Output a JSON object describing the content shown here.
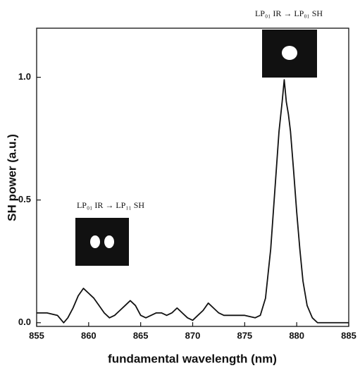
{
  "chart_data": {
    "type": "line",
    "xlabel": "fundamental wavelength (nm)",
    "ylabel": "SH power (a.u.)",
    "annotations": [
      "LP₀₁ IR → LP₀₁ SH",
      "LP₀₁ IR → LP₁₁ SH"
    ],
    "x": [
      855,
      856,
      857,
      857.6,
      858,
      858.5,
      859,
      859.5,
      860,
      860.5,
      861,
      861.5,
      862,
      862.5,
      863,
      863.5,
      864,
      864.5,
      865,
      865.5,
      866,
      866.5,
      867,
      867.5,
      868,
      868.5,
      869,
      869.5,
      870,
      870.5,
      871,
      871.5,
      872,
      872.5,
      873,
      874,
      875,
      876,
      876.5,
      877,
      877.5,
      878,
      878.3,
      878.6,
      878.8,
      879,
      879.2,
      879.4,
      879.7,
      880,
      880.3,
      880.6,
      881,
      881.5,
      882,
      883,
      884,
      885
    ],
    "values": [
      0.04,
      0.04,
      0.03,
      0.0,
      0.02,
      0.06,
      0.11,
      0.14,
      0.12,
      0.1,
      0.07,
      0.04,
      0.02,
      0.03,
      0.05,
      0.07,
      0.09,
      0.07,
      0.03,
      0.02,
      0.03,
      0.04,
      0.04,
      0.03,
      0.04,
      0.06,
      0.04,
      0.02,
      0.01,
      0.03,
      0.05,
      0.08,
      0.06,
      0.04,
      0.03,
      0.03,
      0.03,
      0.02,
      0.03,
      0.1,
      0.3,
      0.6,
      0.78,
      0.9,
      0.99,
      0.9,
      0.85,
      0.78,
      0.62,
      0.45,
      0.3,
      0.17,
      0.07,
      0.02,
      0.0,
      0.0,
      0.0,
      0.0
    ],
    "color": "#111111",
    "xlim": [
      855,
      885
    ],
    "xticks": [
      855,
      860,
      865,
      870,
      875,
      880,
      885
    ],
    "ylim": [
      -0.015,
      1.2
    ],
    "yticks": [
      {
        "value": 0,
        "label": "0.0"
      },
      0.5,
      {
        "value": 1,
        "label": "1.0"
      }
    ]
  }
}
